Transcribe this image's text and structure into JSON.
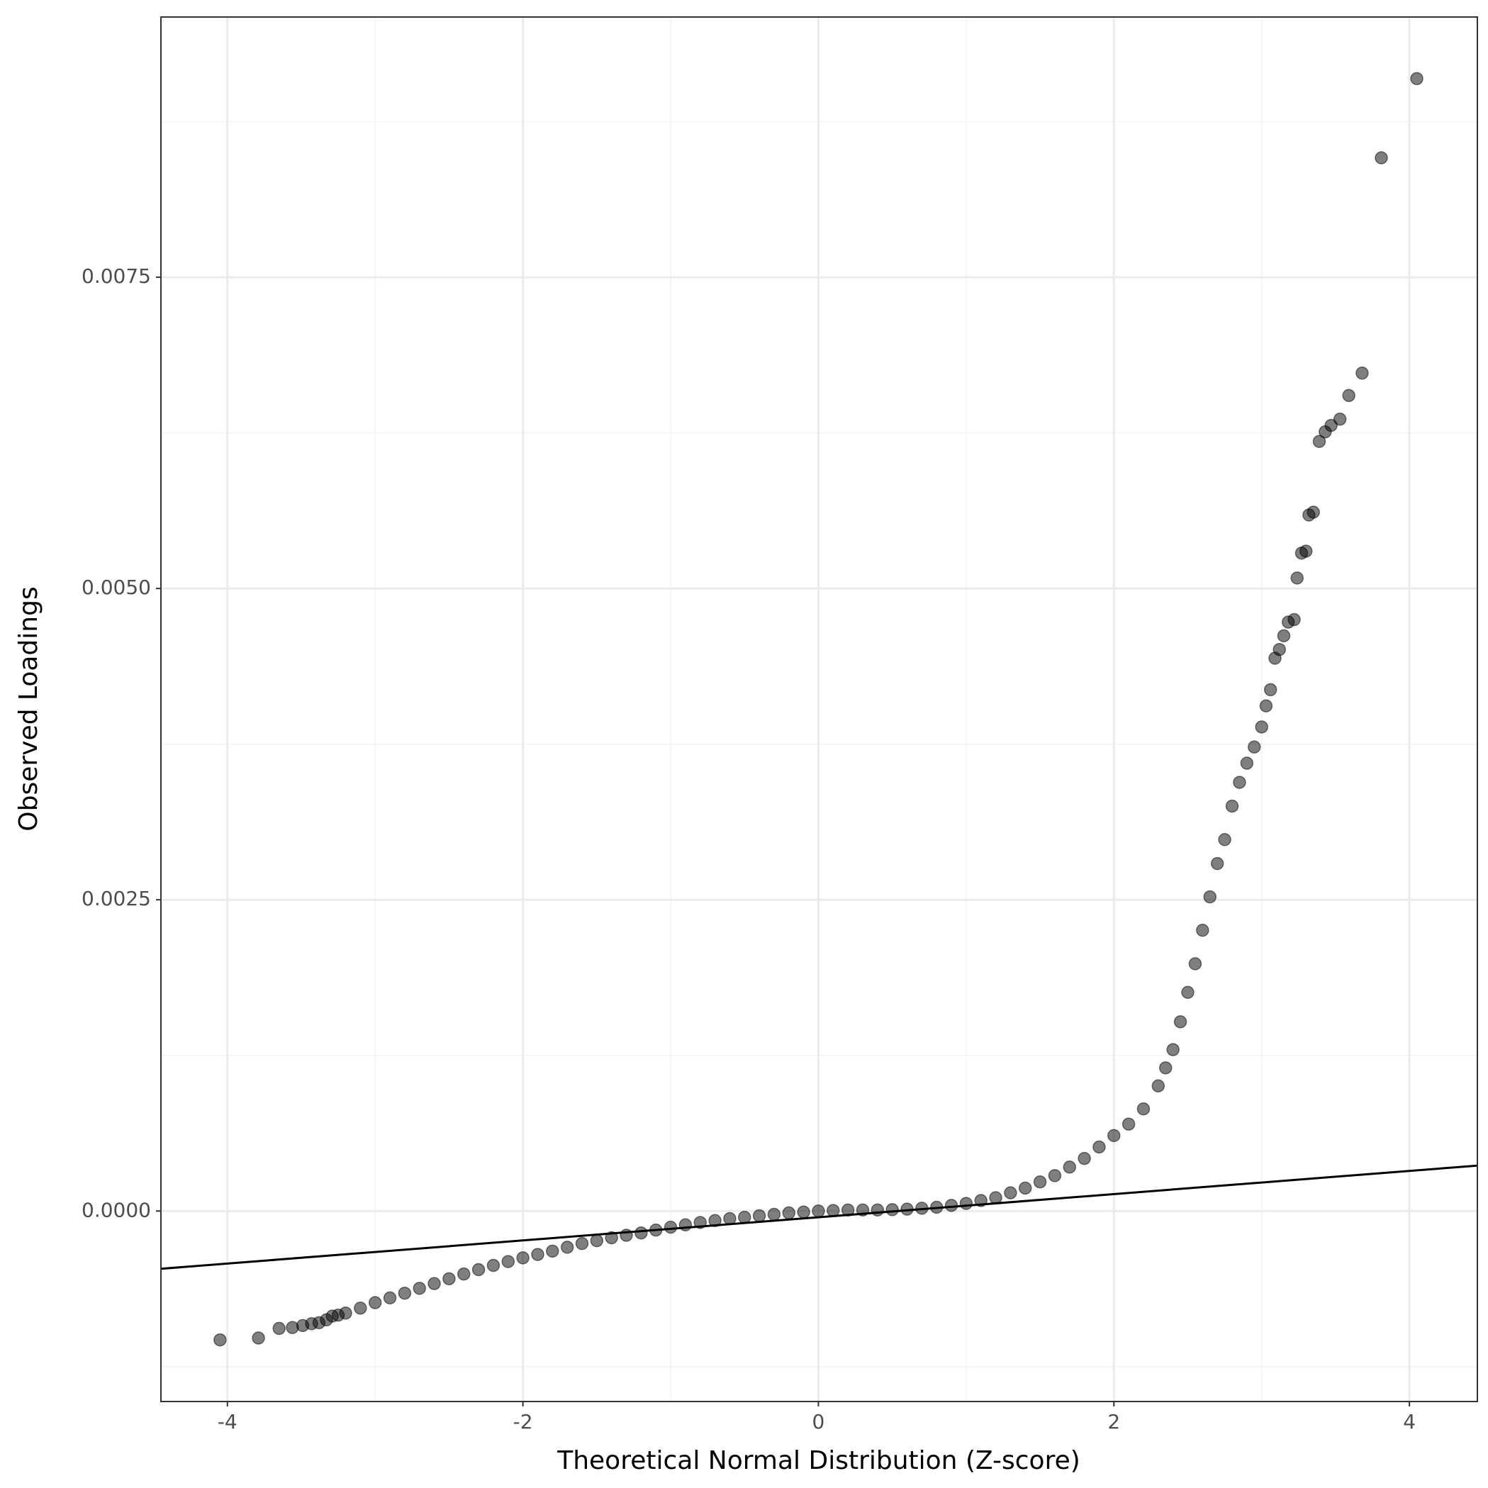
{
  "chart_data": {
    "type": "scatter",
    "x_label": "Theoretical Normal Distribution (Z-score)",
    "y_label": "Observed Loadings",
    "xlim": [
      -4.45,
      4.46
    ],
    "ylim": [
      -0.00153,
      0.00959
    ],
    "xticks": [
      -4,
      -2,
      0,
      2,
      4
    ],
    "yticks": [
      {
        "value": 0,
        "label": "0.0000"
      },
      0.0025,
      {
        "value": 0.005,
        "label": "0.0050"
      },
      0.0075
    ],
    "grid": true,
    "minor_grid": true,
    "color": "#000000",
    "alpha": 0.5,
    "reference_line": {
      "intercept": -5e-05,
      "slope": 9.3e-05,
      "color": "#000000"
    },
    "x": [
      -4.05,
      -3.79,
      -3.65,
      -3.56,
      -3.49,
      -3.43,
      -3.38,
      -3.33,
      -3.29,
      -3.25,
      -3.2,
      -3.1,
      -3.0,
      -2.9,
      -2.8,
      -2.7,
      -2.6,
      -2.5,
      -2.4,
      -2.3,
      -2.2,
      -2.1,
      -2.0,
      -1.9,
      -1.8,
      -1.7,
      -1.6,
      -1.5,
      -1.4,
      -1.3,
      -1.2,
      -1.1,
      -1.0,
      -0.9,
      -0.8,
      -0.7,
      -0.6,
      -0.5,
      -0.4,
      -0.3,
      -0.2,
      -0.1,
      0,
      0.1,
      0.2,
      0.3,
      0.4,
      0.5,
      0.6,
      0.7,
      0.8,
      0.9,
      1.0,
      1.1,
      1.2,
      1.3,
      1.4,
      1.5,
      1.6,
      1.7,
      1.8,
      1.9,
      2.0,
      2.1,
      2.2,
      2.3,
      2.35,
      2.4,
      2.45,
      2.5,
      2.55,
      2.6,
      2.65,
      2.7,
      2.75,
      2.8,
      2.85,
      2.9,
      2.95,
      3.0,
      3.03,
      3.06,
      3.09,
      3.12,
      3.15,
      3.18,
      3.22,
      3.24,
      3.27,
      3.3,
      3.32,
      3.35,
      3.39,
      3.43,
      3.47,
      3.53,
      3.59,
      3.68,
      3.81,
      4.05
    ],
    "y": [
      -0.001035,
      -0.00102,
      -0.000943,
      -0.000936,
      -0.00092,
      -0.000905,
      -0.000897,
      -0.000874,
      -0.000844,
      -0.000836,
      -0.00082,
      -0.00078,
      -0.000736,
      -0.000698,
      -0.00066,
      -0.000621,
      -0.000583,
      -0.000544,
      -0.000506,
      -0.000471,
      -0.000437,
      -0.000406,
      -0.000376,
      -0.000349,
      -0.000322,
      -0.000291,
      -0.000261,
      -0.000238,
      -0.000215,
      -0.000195,
      -0.000176,
      -0.000153,
      -0.00013,
      -0.000111,
      -9.2e-05,
      -7.7e-05,
      -6.1e-05,
      -5e-05,
      -3.8e-05,
      -2.7e-05,
      -1.5e-05,
      -8e-06,
      0,
      4e-06,
      8e-06,
      8e-06,
      8e-06,
      1.1e-05,
      1.5e-05,
      2.2e-05,
      3e-05,
      4.5e-05,
      6.1e-05,
      8.4e-05,
      0.000107,
      0.000146,
      0.000184,
      0.000234,
      0.000284,
      0.000353,
      0.000422,
      0.000514,
      0.000606,
      0.000698,
      0.00082,
      0.001005,
      0.00115,
      0.001296,
      0.00152,
      0.001756,
      0.001986,
      0.002255,
      0.002523,
      0.002791,
      0.002983,
      0.003252,
      0.003443,
      0.003597,
      0.003727,
      0.003888,
      0.004057,
      0.004187,
      0.00444,
      0.00451,
      0.00462,
      0.00473,
      0.00475,
      0.005084,
      0.005284,
      0.0053,
      0.00559,
      0.005613,
      0.006181,
      0.006258,
      0.00631,
      0.00636,
      0.00655,
      0.00673,
      0.008459,
      0.009095
    ]
  }
}
